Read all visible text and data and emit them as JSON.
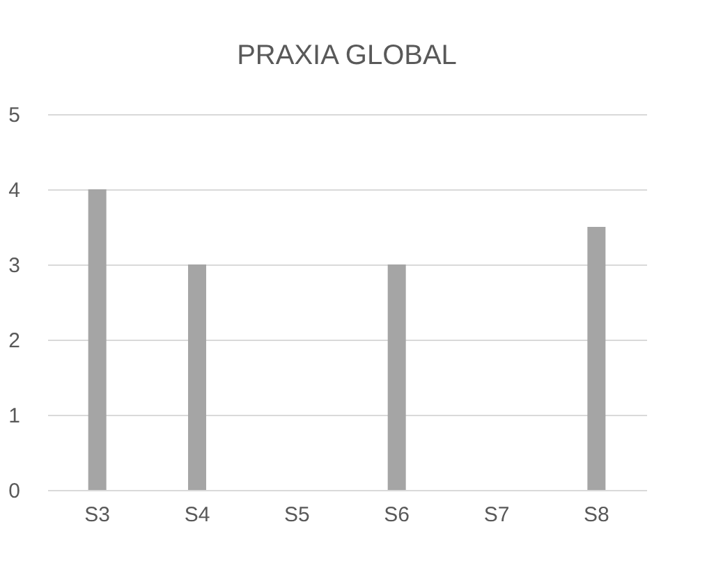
{
  "chart_data": {
    "type": "bar",
    "title": "PRAXIA GLOBAL",
    "categories": [
      "S3",
      "S4",
      "S5",
      "S6",
      "S7",
      "S8"
    ],
    "values": [
      4,
      3,
      0,
      3,
      0,
      3.5
    ],
    "color": "#a5a5a5",
    "ylim": [
      0,
      5
    ],
    "yticks": [
      0,
      1,
      2,
      3,
      4,
      5
    ],
    "grid": "y"
  }
}
